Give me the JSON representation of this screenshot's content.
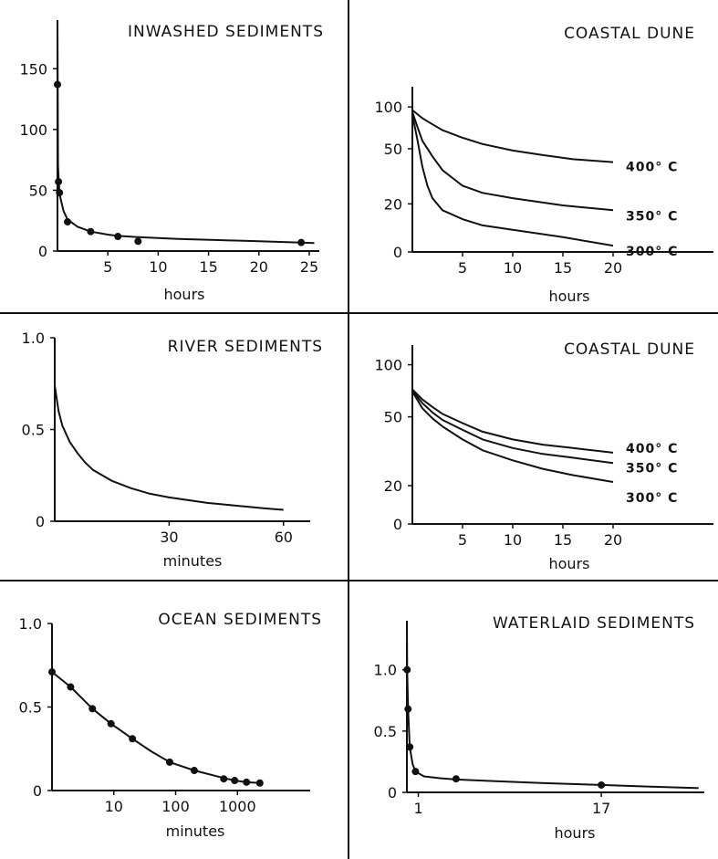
{
  "colors": {
    "ink": "#111111",
    "background": "#ffffff"
  },
  "chart_data": [
    {
      "id": "inwashed",
      "type": "scatter",
      "title": "INWASHED SEDIMENTS",
      "xlabel": "hours",
      "ylabel": "",
      "x_scale": "linear",
      "xlim": [
        0,
        26
      ],
      "ylim": [
        0,
        190
      ],
      "xticks": [
        5,
        10,
        15,
        20,
        25
      ],
      "xtick_labels": [
        "5",
        "10",
        "15",
        "20",
        "25"
      ],
      "yticks": [
        0,
        50,
        100,
        150
      ],
      "ytick_labels": [
        "0",
        "50",
        "100",
        "150"
      ],
      "grid": false,
      "series": [
        {
          "points": [
            [
              0,
              137
            ],
            [
              0.1,
              57
            ],
            [
              0.2,
              48
            ],
            [
              1,
              24
            ],
            [
              3.3,
              16
            ],
            [
              6,
              12
            ],
            [
              8,
              8
            ],
            [
              24.2,
              7
            ]
          ],
          "curve": [
            [
              0,
              190
            ],
            [
              0.05,
              70
            ],
            [
              0.2,
              47
            ],
            [
              0.6,
              33
            ],
            [
              1,
              26
            ],
            [
              2,
              20
            ],
            [
              3.3,
              16
            ],
            [
              5,
              13.5
            ],
            [
              6,
              12.5
            ],
            [
              8,
              11.5
            ],
            [
              12,
              10
            ],
            [
              16,
              9
            ],
            [
              20,
              8
            ],
            [
              24.2,
              7
            ],
            [
              25.5,
              6.5
            ]
          ]
        }
      ]
    },
    {
      "id": "coastal1",
      "type": "line",
      "title": "COASTAL DUNE",
      "xlabel": "hours",
      "ylabel": "",
      "x_scale": "linear",
      "y_scale": "log",
      "xlim": [
        0,
        30
      ],
      "ylim": [
        9,
        140
      ],
      "xticks": [
        5,
        10,
        15,
        20
      ],
      "xtick_labels": [
        "5",
        "10",
        "15",
        "20"
      ],
      "yticks": [
        20,
        50,
        100
      ],
      "ytick_labels": [
        "20",
        "50",
        "100"
      ],
      "y_bottom_label": "0",
      "grid": false,
      "series": [
        {
          "name": "400° C",
          "points": [
            [
              0,
              95
            ],
            [
              1,
              83
            ],
            [
              2,
              75
            ],
            [
              3,
              68
            ],
            [
              5,
              60
            ],
            [
              7,
              54
            ],
            [
              10,
              48.5
            ],
            [
              13,
              45
            ],
            [
              16,
              42
            ],
            [
              20,
              40
            ]
          ]
        },
        {
          "name": "350° C",
          "points": [
            [
              0,
              92
            ],
            [
              0.5,
              72
            ],
            [
              1,
              57
            ],
            [
              2,
              44
            ],
            [
              3,
              35
            ],
            [
              5,
              27
            ],
            [
              7,
              24
            ],
            [
              10,
              22
            ],
            [
              15,
              19.5
            ],
            [
              20,
              18
            ]
          ]
        },
        {
          "name": "300° C",
          "points": [
            [
              0,
              88
            ],
            [
              0.5,
              58
            ],
            [
              1,
              37
            ],
            [
              1.5,
              27
            ],
            [
              2,
              22
            ],
            [
              3,
              18
            ],
            [
              5,
              15.5
            ],
            [
              7,
              14
            ],
            [
              10,
              13
            ],
            [
              15,
              11.5
            ],
            [
              20,
              10
            ]
          ]
        }
      ]
    },
    {
      "id": "river",
      "type": "line",
      "title": "RIVER SEDIMENTS",
      "xlabel": "minutes",
      "ylabel": "",
      "x_scale": "linear",
      "xlim": [
        0,
        67
      ],
      "ylim": [
        0,
        1.0
      ],
      "xticks": [
        30,
        60
      ],
      "xtick_labels": [
        "30",
        "60"
      ],
      "yticks": [
        0,
        0.5,
        1.0
      ],
      "ytick_labels": [
        "0",
        "0.5",
        "1.0"
      ],
      "grid": false,
      "series": [
        {
          "points": [
            [
              0,
              0.74
            ],
            [
              1,
              0.6
            ],
            [
              2,
              0.52
            ],
            [
              4,
              0.43
            ],
            [
              6,
              0.37
            ],
            [
              8,
              0.32
            ],
            [
              10,
              0.28
            ],
            [
              15,
              0.22
            ],
            [
              20,
              0.18
            ],
            [
              25,
              0.15
            ],
            [
              30,
              0.13
            ],
            [
              35,
              0.115
            ],
            [
              40,
              0.1
            ],
            [
              45,
              0.09
            ],
            [
              50,
              0.08
            ],
            [
              55,
              0.07
            ],
            [
              60,
              0.062
            ]
          ]
        }
      ]
    },
    {
      "id": "coastal2",
      "type": "line",
      "title": "COASTAL DUNE",
      "xlabel": "hours",
      "ylabel": "",
      "x_scale": "linear",
      "y_scale": "log",
      "xlim": [
        0,
        30
      ],
      "ylim": [
        12,
        130
      ],
      "xticks": [
        5,
        10,
        15,
        20
      ],
      "xtick_labels": [
        "5",
        "10",
        "15",
        "20"
      ],
      "yticks": [
        20,
        50,
        100
      ],
      "ytick_labels": [
        "20",
        "50",
        "100"
      ],
      "y_bottom_label": "0",
      "grid": false,
      "series": [
        {
          "name": "400° C",
          "points": [
            [
              0,
              72
            ],
            [
              1,
              63
            ],
            [
              2,
              57
            ],
            [
              3,
              52
            ],
            [
              5,
              46
            ],
            [
              7,
              41
            ],
            [
              10,
              37
            ],
            [
              13,
              34.5
            ],
            [
              16,
              33
            ],
            [
              20,
              31
            ]
          ]
        },
        {
          "name": "350° C",
          "points": [
            [
              0,
              71
            ],
            [
              1,
              60
            ],
            [
              2,
              53
            ],
            [
              3,
              48
            ],
            [
              5,
              42
            ],
            [
              7,
              37
            ],
            [
              10,
              33
            ],
            [
              13,
              30.5
            ],
            [
              16,
              29
            ],
            [
              20,
              27
            ]
          ]
        },
        {
          "name": "300° C",
          "points": [
            [
              0,
              70
            ],
            [
              1,
              56
            ],
            [
              2,
              49
            ],
            [
              3,
              44
            ],
            [
              5,
              37
            ],
            [
              7,
              32
            ],
            [
              10,
              28
            ],
            [
              13,
              25
            ],
            [
              16,
              23
            ],
            [
              20,
              21
            ]
          ]
        }
      ]
    },
    {
      "id": "ocean",
      "type": "scatter",
      "title": "OCEAN SEDIMENTS",
      "xlabel": "minutes",
      "ylabel": "",
      "x_scale": "log",
      "xlim": [
        1,
        15000
      ],
      "ylim": [
        0,
        1.0
      ],
      "xticks": [
        10,
        100,
        1000
      ],
      "xtick_labels": [
        "10",
        "100",
        "1000"
      ],
      "yticks": [
        0,
        0.5,
        1.0
      ],
      "ytick_labels": [
        "0",
        "0.5",
        "1.0"
      ],
      "grid": false,
      "series": [
        {
          "points": [
            [
              1,
              0.71
            ],
            [
              2,
              0.62
            ],
            [
              4.5,
              0.49
            ],
            [
              9,
              0.4
            ],
            [
              20,
              0.31
            ],
            [
              80,
              0.17
            ],
            [
              200,
              0.12
            ],
            [
              600,
              0.07
            ],
            [
              900,
              0.06
            ],
            [
              1400,
              0.05
            ],
            [
              2300,
              0.045
            ]
          ],
          "curve": [
            [
              1,
              0.71
            ],
            [
              2,
              0.62
            ],
            [
              4.5,
              0.49
            ],
            [
              9,
              0.4
            ],
            [
              20,
              0.31
            ],
            [
              40,
              0.235
            ],
            [
              80,
              0.17
            ],
            [
              200,
              0.12
            ],
            [
              600,
              0.075
            ],
            [
              900,
              0.06
            ],
            [
              1400,
              0.05
            ],
            [
              2300,
              0.045
            ]
          ]
        }
      ]
    },
    {
      "id": "waterlaid",
      "type": "scatter",
      "title": "WATERLAID SEDIMENTS",
      "xlabel": "hours",
      "ylabel": "",
      "x_scale": "linear",
      "xlim": [
        0,
        26
      ],
      "ylim": [
        0,
        1.4
      ],
      "xticks": [
        1,
        17
      ],
      "xtick_labels": [
        "1",
        "17"
      ],
      "yticks": [
        0,
        0.5,
        1.0
      ],
      "ytick_labels": [
        "0",
        "0.5",
        "1.0"
      ],
      "grid": false,
      "series": [
        {
          "points": [
            [
              0.02,
              1.0
            ],
            [
              0.1,
              0.68
            ],
            [
              0.25,
              0.37
            ],
            [
              0.75,
              0.17
            ],
            [
              4.3,
              0.11
            ],
            [
              17,
              0.06
            ]
          ],
          "curve": [
            [
              0,
              1.4
            ],
            [
              0.02,
              1.0
            ],
            [
              0.1,
              0.68
            ],
            [
              0.25,
              0.37
            ],
            [
              0.5,
              0.23
            ],
            [
              0.75,
              0.17
            ],
            [
              1.5,
              0.13
            ],
            [
              3,
              0.115
            ],
            [
              4.3,
              0.105
            ],
            [
              8,
              0.09
            ],
            [
              12,
              0.075
            ],
            [
              17,
              0.06
            ],
            [
              21,
              0.048
            ],
            [
              25.5,
              0.035
            ]
          ]
        }
      ]
    }
  ]
}
